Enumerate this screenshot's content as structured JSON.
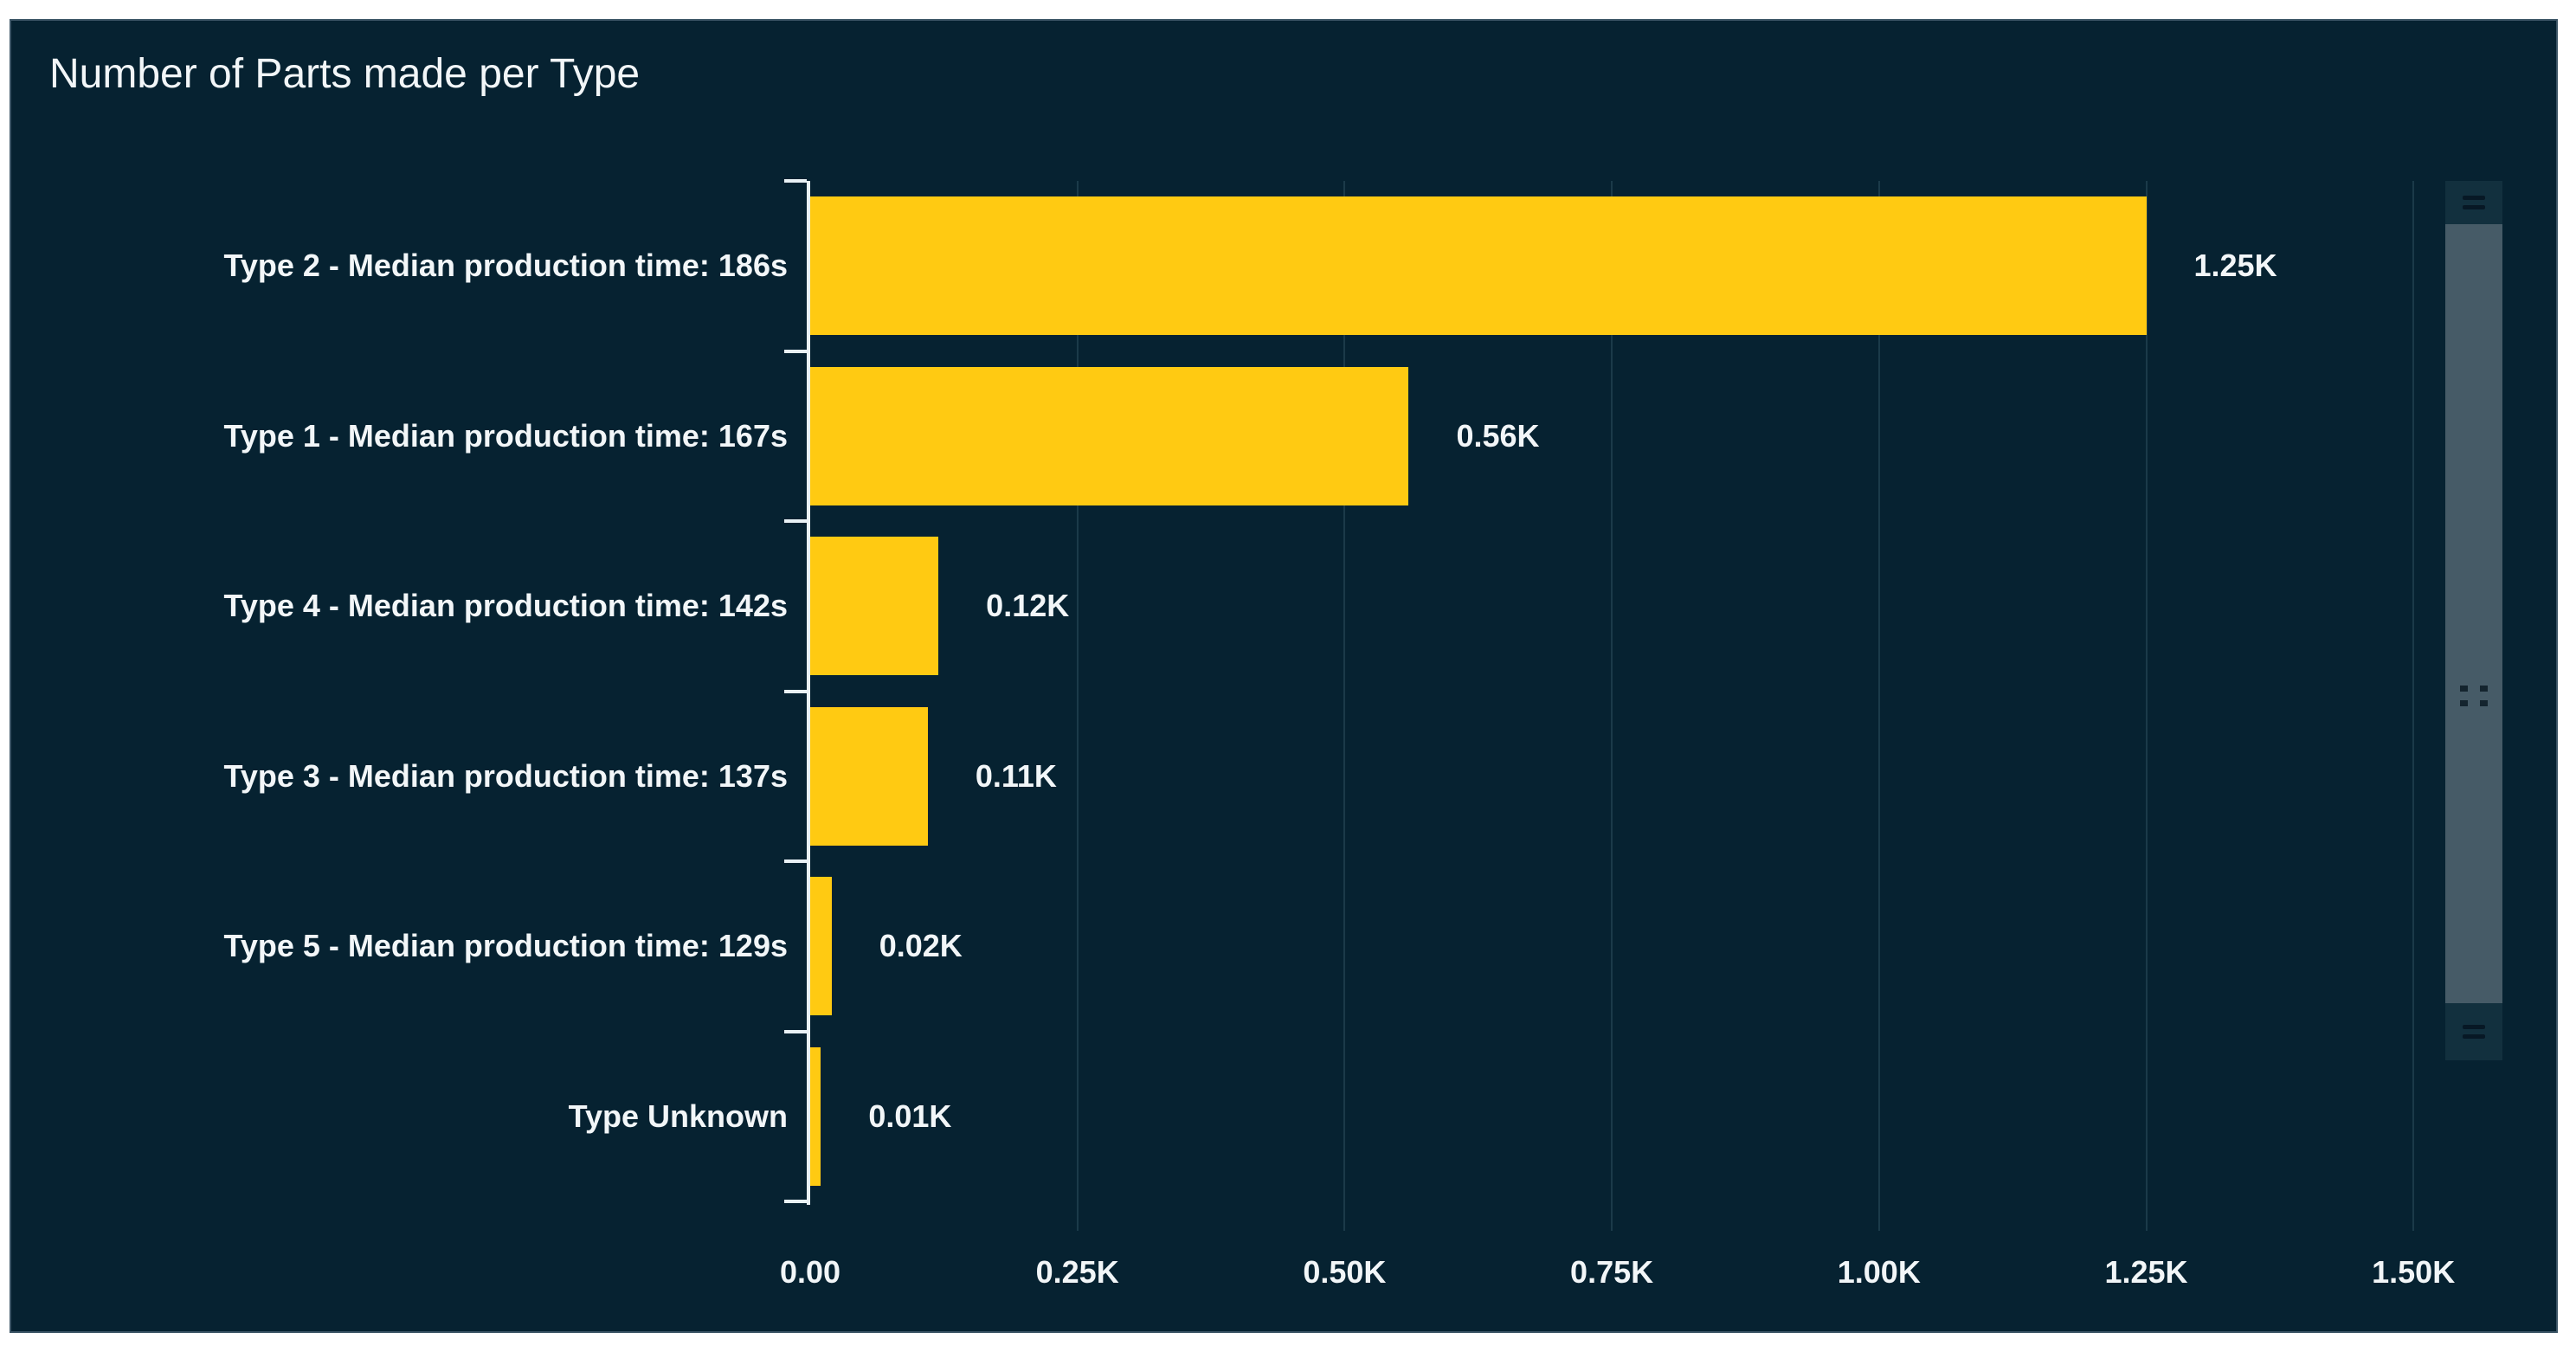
{
  "chart_data": {
    "type": "bar",
    "orientation": "horizontal",
    "title": "Number of Parts made per Type",
    "categories": [
      "Type 2 - Median production time: 186s",
      "Type 1 - Median production time: 167s",
      "Type 4 - Median production time: 142s",
      "Type 3 - Median production time: 137s",
      "Type 5 - Median production time: 129s",
      "Type Unknown"
    ],
    "values": [
      1250,
      560,
      120,
      110,
      20,
      10
    ],
    "value_labels": [
      "1.25K",
      "0.56K",
      "0.12K",
      "0.11K",
      "0.02K",
      "0.01K"
    ],
    "x_ticks": [
      {
        "label": "0.00",
        "value": 0
      },
      {
        "label": "0.25K",
        "value": 250
      },
      {
        "label": "0.50K",
        "value": 500
      },
      {
        "label": "0.75K",
        "value": 750
      },
      {
        "label": "1.00K",
        "value": 1000
      },
      {
        "label": "1.25K",
        "value": 1250
      },
      {
        "label": "1.50K",
        "value": 1500
      }
    ],
    "xlim": [
      0,
      1500
    ],
    "xlabel": "",
    "ylabel": "",
    "grid": true,
    "legend_position": "none",
    "bar_color": "#ffca12"
  },
  "colors": {
    "page_background": "#ffffff",
    "widget_background": "#062231",
    "widget_border": "#3b5465",
    "bar": "#ffca12",
    "text": "#f2f6f8",
    "gridline": "#1b3a49",
    "axis": "#e9f1f5",
    "scrollbar_handle_bg": "#12303e",
    "scrollbar_thumb": "#465b67",
    "scrollbar_icon": "#071825",
    "scrollbar_dots": "#14242e"
  },
  "scrollbar": {
    "top_handle_icon": "resize-handle-icon",
    "thumb_icon": "drag-dots-icon",
    "bottom_handle_icon": "resize-handle-icon"
  }
}
